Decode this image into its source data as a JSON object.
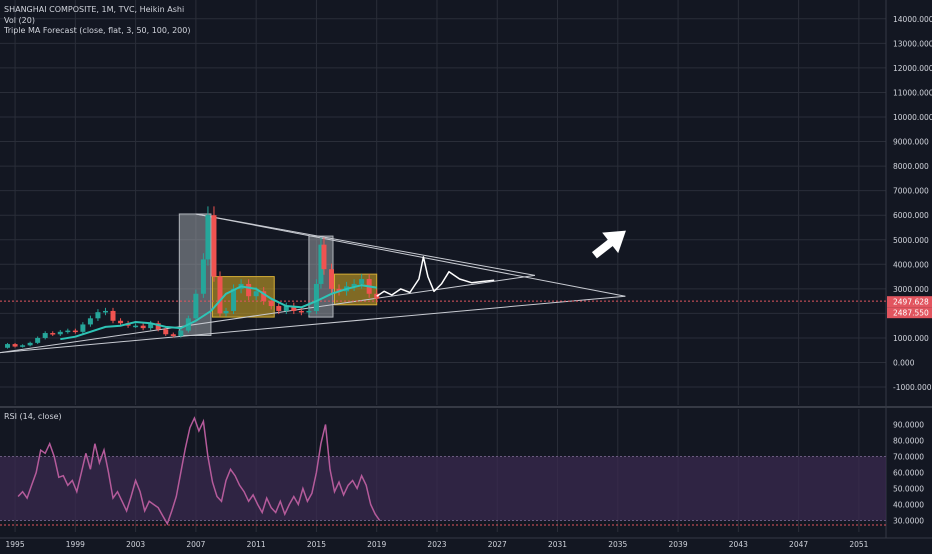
{
  "legend": {
    "line1": "SHANGHAI COMPOSITE, 1M, TVC, Heikin Ashi",
    "line2": "Vol (20)",
    "line3": "Triple MA Forecast (close, flat, 3, 50, 100, 200)",
    "rsi": "RSI (14, close)"
  },
  "price_labels": {
    "last": "2497.628",
    "ma": "2487.550"
  },
  "colors": {
    "background": "#131722",
    "grid": "#2a2e39",
    "candle_up": "#26a69a",
    "candle_down": "#ef5350",
    "ma_line": "#2ec4b6",
    "rsi_line": "#b55b9b",
    "rsi_band": "#3a2a4f",
    "box_gray": "#9aa0a6",
    "box_orange": "#c9a227",
    "price_tag": "#e2555f"
  },
  "chart_data": [
    {
      "type": "line",
      "title": "SHANGHAI COMPOSITE, 1M, TVC, Heikin Ashi",
      "x_ticks": [
        "1995",
        "1999",
        "2003",
        "2007",
        "2011",
        "2015",
        "2019",
        "2023",
        "2027",
        "2031",
        "2035",
        "2039",
        "2043",
        "2047",
        "2051"
      ],
      "y_ticks": [
        "14000.000",
        "13000.000",
        "12000.000",
        "11000.000",
        "10000.000",
        "9000.000",
        "8000.000",
        "7000.000",
        "6000.000",
        "5000.000",
        "4000.000",
        "3000.000",
        "2000.000",
        "1000.000",
        "0.000",
        "-1000.000"
      ],
      "ylim": [
        -1000,
        14000
      ],
      "series": [
        {
          "name": "SHANGHAI COMPOSITE",
          "x": [
            1994.0,
            1994.5,
            1995.0,
            1995.5,
            1996.0,
            1996.5,
            1997.0,
            1997.5,
            1998.0,
            1998.5,
            1999.0,
            1999.5,
            2000.0,
            2000.5,
            2001.0,
            2001.5,
            2002.0,
            2002.5,
            2003.0,
            2003.5,
            2004.0,
            2004.5,
            2005.0,
            2005.5,
            2006.0,
            2006.5,
            2007.0,
            2007.5,
            2007.8,
            2008.2,
            2008.6,
            2009.0,
            2009.5,
            2010.0,
            2010.5,
            2011.0,
            2011.5,
            2012.0,
            2012.5,
            2013.0,
            2013.5,
            2014.0,
            2014.5,
            2015.0,
            2015.3,
            2015.5,
            2016.0,
            2016.5,
            2017.0,
            2017.5,
            2018.0,
            2018.5,
            2019.0
          ],
          "values": [
            600,
            750,
            650,
            700,
            800,
            1000,
            1200,
            1150,
            1250,
            1300,
            1250,
            1550,
            1800,
            2050,
            2100,
            1700,
            1600,
            1500,
            1500,
            1400,
            1600,
            1350,
            1150,
            1080,
            1300,
            1800,
            2800,
            4200,
            6000,
            3500,
            2000,
            2100,
            3000,
            3200,
            2700,
            2900,
            2500,
            2300,
            2100,
            2300,
            2100,
            2050,
            2100,
            3200,
            4800,
            3800,
            3000,
            2900,
            3100,
            3200,
            3400,
            2800,
            2600
          ]
        },
        {
          "name": "Triple MA Forecast",
          "x": [
            1998.0,
            1999.0,
            2000.0,
            2001.0,
            2002.0,
            2003.0,
            2004.0,
            2005.0,
            2006.0,
            2007.0,
            2008.0,
            2009.0,
            2010.0,
            2011.0,
            2012.0,
            2013.0,
            2014.0,
            2015.0,
            2016.0,
            2017.0,
            2018.0,
            2019.0
          ],
          "values": [
            950,
            1050,
            1250,
            1450,
            1500,
            1650,
            1600,
            1450,
            1400,
            1700,
            2100,
            2800,
            3100,
            3000,
            2600,
            2300,
            2250,
            2500,
            2800,
            3000,
            3150,
            3050
          ]
        },
        {
          "name": "Forecast sketch",
          "x": [
            2019.0,
            2019.5,
            2020.0,
            2020.6,
            2021.2,
            2021.8,
            2022.1,
            2022.4,
            2022.8,
            2023.3,
            2023.8,
            2024.5,
            2025.3,
            2026.0,
            2026.8
          ],
          "values": [
            2700,
            2900,
            2750,
            3000,
            2850,
            3400,
            4300,
            3500,
            2900,
            3200,
            3700,
            3400,
            3250,
            3300,
            3350
          ]
        }
      ],
      "trendlines": [
        {
          "from": [
            2007.0,
            6050
          ],
          "to": [
            2029.5,
            3550
          ]
        },
        {
          "from": [
            2007.0,
            6050
          ],
          "to": [
            2035.5,
            2700
          ]
        },
        {
          "from": [
            1994.0,
            400
          ],
          "to": [
            2029.5,
            3550
          ]
        },
        {
          "from": [
            1994.0,
            400
          ],
          "to": [
            2035.5,
            2700
          ]
        }
      ],
      "boxes": [
        {
          "kind": "gray",
          "x": [
            2005.9,
            2008.0
          ],
          "y": [
            1100,
            6050
          ]
        },
        {
          "kind": "orange",
          "x": [
            2008.1,
            2012.2
          ],
          "y": [
            1850,
            3500
          ]
        },
        {
          "kind": "gray",
          "x": [
            2014.5,
            2016.1
          ],
          "y": [
            1850,
            5150
          ]
        },
        {
          "kind": "orange",
          "x": [
            2016.2,
            2019.0
          ],
          "y": [
            2350,
            3600
          ]
        }
      ],
      "horizontal_line": 2497.628
    },
    {
      "type": "line",
      "title": "RSI (14, close)",
      "y_ticks": [
        "90.0000",
        "80.0000",
        "70.0000",
        "60.0000",
        "50.0000",
        "40.0000",
        "30.0000"
      ],
      "ylim": [
        27,
        97
      ],
      "band": [
        30,
        70
      ],
      "series": [
        {
          "name": "RSI",
          "x": [
            1995.2,
            1995.5,
            1995.8,
            1996.1,
            1996.4,
            1996.7,
            1997.0,
            1997.3,
            1997.6,
            1997.9,
            1998.2,
            1998.5,
            1998.8,
            1999.1,
            1999.4,
            1999.7,
            2000.0,
            2000.3,
            2000.6,
            2000.9,
            2001.2,
            2001.5,
            2001.8,
            2002.1,
            2002.4,
            2002.7,
            2003.0,
            2003.3,
            2003.6,
            2003.9,
            2004.2,
            2004.5,
            2004.8,
            2005.1,
            2005.4,
            2005.7,
            2006.0,
            2006.3,
            2006.6,
            2006.9,
            2007.2,
            2007.5,
            2007.8,
            2008.1,
            2008.4,
            2008.7,
            2009.0,
            2009.3,
            2009.6,
            2009.9,
            2010.2,
            2010.5,
            2010.8,
            2011.1,
            2011.4,
            2011.7,
            2012.0,
            2012.3,
            2012.6,
            2012.9,
            2013.2,
            2013.5,
            2013.8,
            2014.1,
            2014.4,
            2014.7,
            2015.0,
            2015.3,
            2015.6,
            2015.9,
            2016.2,
            2016.5,
            2016.8,
            2017.1,
            2017.4,
            2017.7,
            2018.0,
            2018.3,
            2018.6,
            2018.9,
            2019.2
          ],
          "values": [
            45,
            48,
            44,
            52,
            60,
            74,
            72,
            78,
            70,
            57,
            58,
            52,
            55,
            48,
            60,
            72,
            62,
            78,
            66,
            74,
            60,
            44,
            48,
            42,
            36,
            45,
            55,
            48,
            36,
            42,
            40,
            38,
            33,
            28,
            36,
            45,
            60,
            75,
            88,
            94,
            86,
            92,
            70,
            54,
            45,
            42,
            55,
            62,
            58,
            52,
            48,
            42,
            46,
            40,
            35,
            44,
            38,
            35,
            42,
            34,
            40,
            45,
            40,
            50,
            42,
            47,
            60,
            78,
            90,
            62,
            48,
            54,
            46,
            52,
            55,
            50,
            58,
            52,
            40,
            34,
            30
          ]
        }
      ]
    }
  ]
}
